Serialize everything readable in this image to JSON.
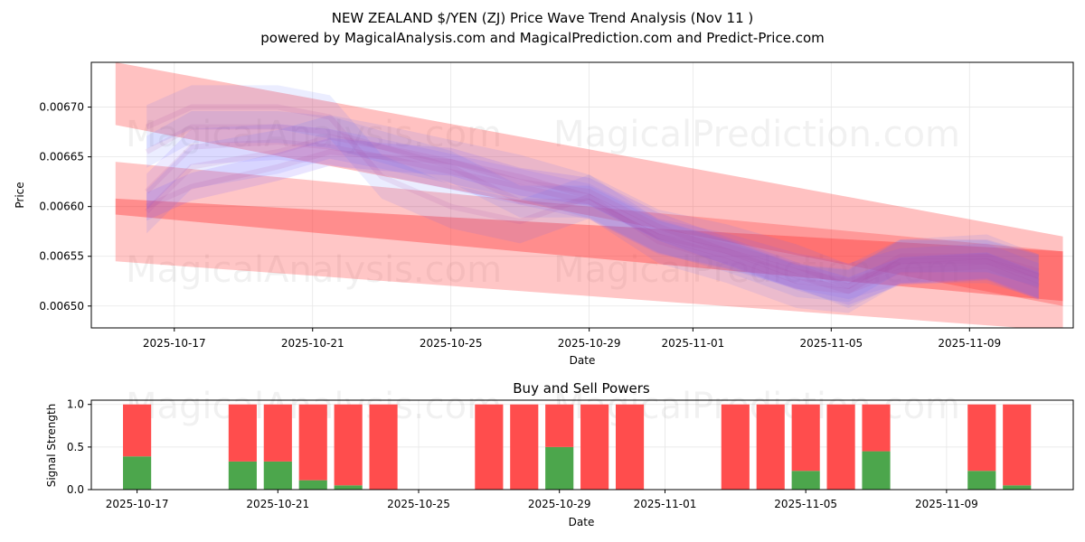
{
  "chart_data": [
    {
      "type": "area",
      "title_line1": "NEW ZEALAND $/YEN (ZJ) Price Wave Trend Analysis (Nov 11 )",
      "title_line2": "powered by MagicalAnalysis.com and MagicalPrediction.com and Predict-Price.com",
      "xlabel": "Date",
      "ylabel": "Price",
      "x_ticks": [
        "2025-10-17",
        "2025-10-21",
        "2025-10-25",
        "2025-10-29",
        "2025-11-01",
        "2025-11-05",
        "2025-11-09"
      ],
      "x_tick_days": [
        2,
        6,
        10,
        14,
        17,
        21,
        25
      ],
      "y_ticks": [
        "0.00650",
        "0.00655",
        "0.00660",
        "0.00665",
        "0.00670"
      ],
      "y_tick_values": [
        0.0065,
        0.00655,
        0.0066,
        0.00665,
        0.0067
      ],
      "xlim_days": [
        -0.4,
        28.0
      ],
      "ylim": [
        0.006478,
        0.006745
      ],
      "watermarks": [
        "MagicalAnalysis.com",
        "MagicalPrediction.com",
        "MagicalAnalysis.com",
        "MagicalPrediction.com"
      ],
      "red_bands": [
        {
          "x": [
            0.3,
            27.7
          ],
          "upper": [
            0.006745,
            0.00657
          ],
          "lower": [
            0.006682,
            0.0065
          ],
          "opacity": 0.3
        },
        {
          "x": [
            0.3,
            27.7
          ],
          "upper": [
            0.006645,
            0.006555
          ],
          "lower": [
            0.006545,
            0.006475
          ],
          "opacity": 0.28
        },
        {
          "x": [
            0.3,
            27.7
          ],
          "upper": [
            0.006608,
            0.006555
          ],
          "lower": [
            0.006592,
            0.006505
          ],
          "opacity": 0.38
        }
      ],
      "blue_waves": [
        {
          "x": [
            1.2,
            2.5,
            5.0,
            6.5,
            8.0,
            10.0,
            12.0,
            14.0,
            16.0,
            18.0,
            20.0,
            21.5,
            23.0,
            25.5,
            27.0
          ],
          "y": [
            0.006595,
            0.00664,
            0.006655,
            0.00667,
            0.00666,
            0.006645,
            0.00663,
            0.00661,
            0.006575,
            0.00656,
            0.00654,
            0.00652,
            0.006545,
            0.00655,
            0.00653
          ],
          "w": 2.2e-05,
          "opacity": 0.13
        },
        {
          "x": [
            1.2,
            2.5,
            5.0,
            6.5,
            8.0,
            10.0,
            12.0,
            14.0,
            16.0,
            18.0,
            20.0,
            21.5,
            23.0,
            25.5,
            27.0
          ],
          "y": [
            0.006615,
            0.00666,
            0.006665,
            0.00666,
            0.00665,
            0.006635,
            0.00662,
            0.006605,
            0.00657,
            0.006555,
            0.006535,
            0.006525,
            0.00654,
            0.006545,
            0.006525
          ],
          "w": 1.8e-05,
          "opacity": 0.13
        },
        {
          "x": [
            1.2,
            2.5,
            5.0,
            6.5,
            8.0,
            10.0,
            12.0,
            14.0,
            16.0,
            18.0,
            20.0,
            21.5,
            23.0,
            25.5,
            27.0
          ],
          "y": [
            0.00668,
            0.0067,
            0.0067,
            0.00669,
            0.00663,
            0.0066,
            0.006585,
            0.00661,
            0.006565,
            0.006545,
            0.00652,
            0.006515,
            0.006545,
            0.006545,
            0.00653
          ],
          "w": 2.2e-05,
          "opacity": 0.12
        },
        {
          "x": [
            1.2,
            2.5,
            5.0,
            6.5,
            8.0,
            10.0,
            12.0,
            14.0,
            16.0,
            18.0,
            20.0,
            21.5,
            23.0,
            25.5,
            27.0
          ],
          "y": [
            0.0066,
            0.00662,
            0.00664,
            0.006655,
            0.00665,
            0.006645,
            0.006625,
            0.006615,
            0.00658,
            0.006555,
            0.00653,
            0.006515,
            0.006535,
            0.00654,
            0.00652
          ],
          "w": 1.4e-05,
          "opacity": 0.16
        },
        {
          "x": [
            1.2,
            2.5,
            5.0,
            6.5,
            8.0,
            10.0,
            12.0,
            14.0,
            16.0,
            18.0,
            20.0,
            21.5,
            23.0,
            25.5,
            27.0
          ],
          "y": [
            0.006655,
            0.00668,
            0.00668,
            0.006675,
            0.00666,
            0.00664,
            0.006605,
            0.006605,
            0.00657,
            0.00655,
            0.006525,
            0.00652,
            0.00655,
            0.00655,
            0.006535
          ],
          "w": 1.6e-05,
          "opacity": 0.12
        }
      ]
    },
    {
      "type": "bar",
      "title": "Buy and Sell Powers",
      "xlabel": "Date",
      "ylabel": "Signal Strength",
      "y_ticks": [
        "0.0",
        "0.5",
        "1.0"
      ],
      "y_tick_values": [
        0.0,
        0.5,
        1.0
      ],
      "x_ticks": [
        "2025-10-17",
        "2025-10-21",
        "2025-10-25",
        "2025-10-29",
        "2025-11-01",
        "2025-11-05",
        "2025-11-09"
      ],
      "x_tick_days": [
        0,
        4,
        8,
        12,
        15,
        19,
        23
      ],
      "xlim_days": [
        -1.3,
        26.6
      ],
      "ylim": [
        0,
        1.05
      ],
      "colors": {
        "buy": "#4ca64c",
        "sell": "#ff4d4d"
      },
      "bars": [
        {
          "day": 0,
          "buy": 0.39,
          "sell": 0.61
        },
        {
          "day": 3,
          "buy": 0.33,
          "sell": 0.67
        },
        {
          "day": 4,
          "buy": 0.33,
          "sell": 0.67
        },
        {
          "day": 5,
          "buy": 0.11,
          "sell": 0.89
        },
        {
          "day": 6,
          "buy": 0.05,
          "sell": 0.95
        },
        {
          "day": 7,
          "buy": 0.0,
          "sell": 1.0
        },
        {
          "day": 10,
          "buy": 0.0,
          "sell": 1.0
        },
        {
          "day": 11,
          "buy": 0.0,
          "sell": 1.0
        },
        {
          "day": 12,
          "buy": 0.5,
          "sell": 0.5
        },
        {
          "day": 13,
          "buy": 0.0,
          "sell": 1.0
        },
        {
          "day": 14,
          "buy": 0.0,
          "sell": 1.0
        },
        {
          "day": 17,
          "buy": 0.0,
          "sell": 1.0
        },
        {
          "day": 18,
          "buy": 0.0,
          "sell": 1.0
        },
        {
          "day": 19,
          "buy": 0.22,
          "sell": 0.78
        },
        {
          "day": 20,
          "buy": 0.0,
          "sell": 1.0
        },
        {
          "day": 21,
          "buy": 0.45,
          "sell": 0.55
        },
        {
          "day": 24,
          "buy": 0.22,
          "sell": 0.78
        },
        {
          "day": 25,
          "buy": 0.05,
          "sell": 0.95
        }
      ]
    }
  ]
}
